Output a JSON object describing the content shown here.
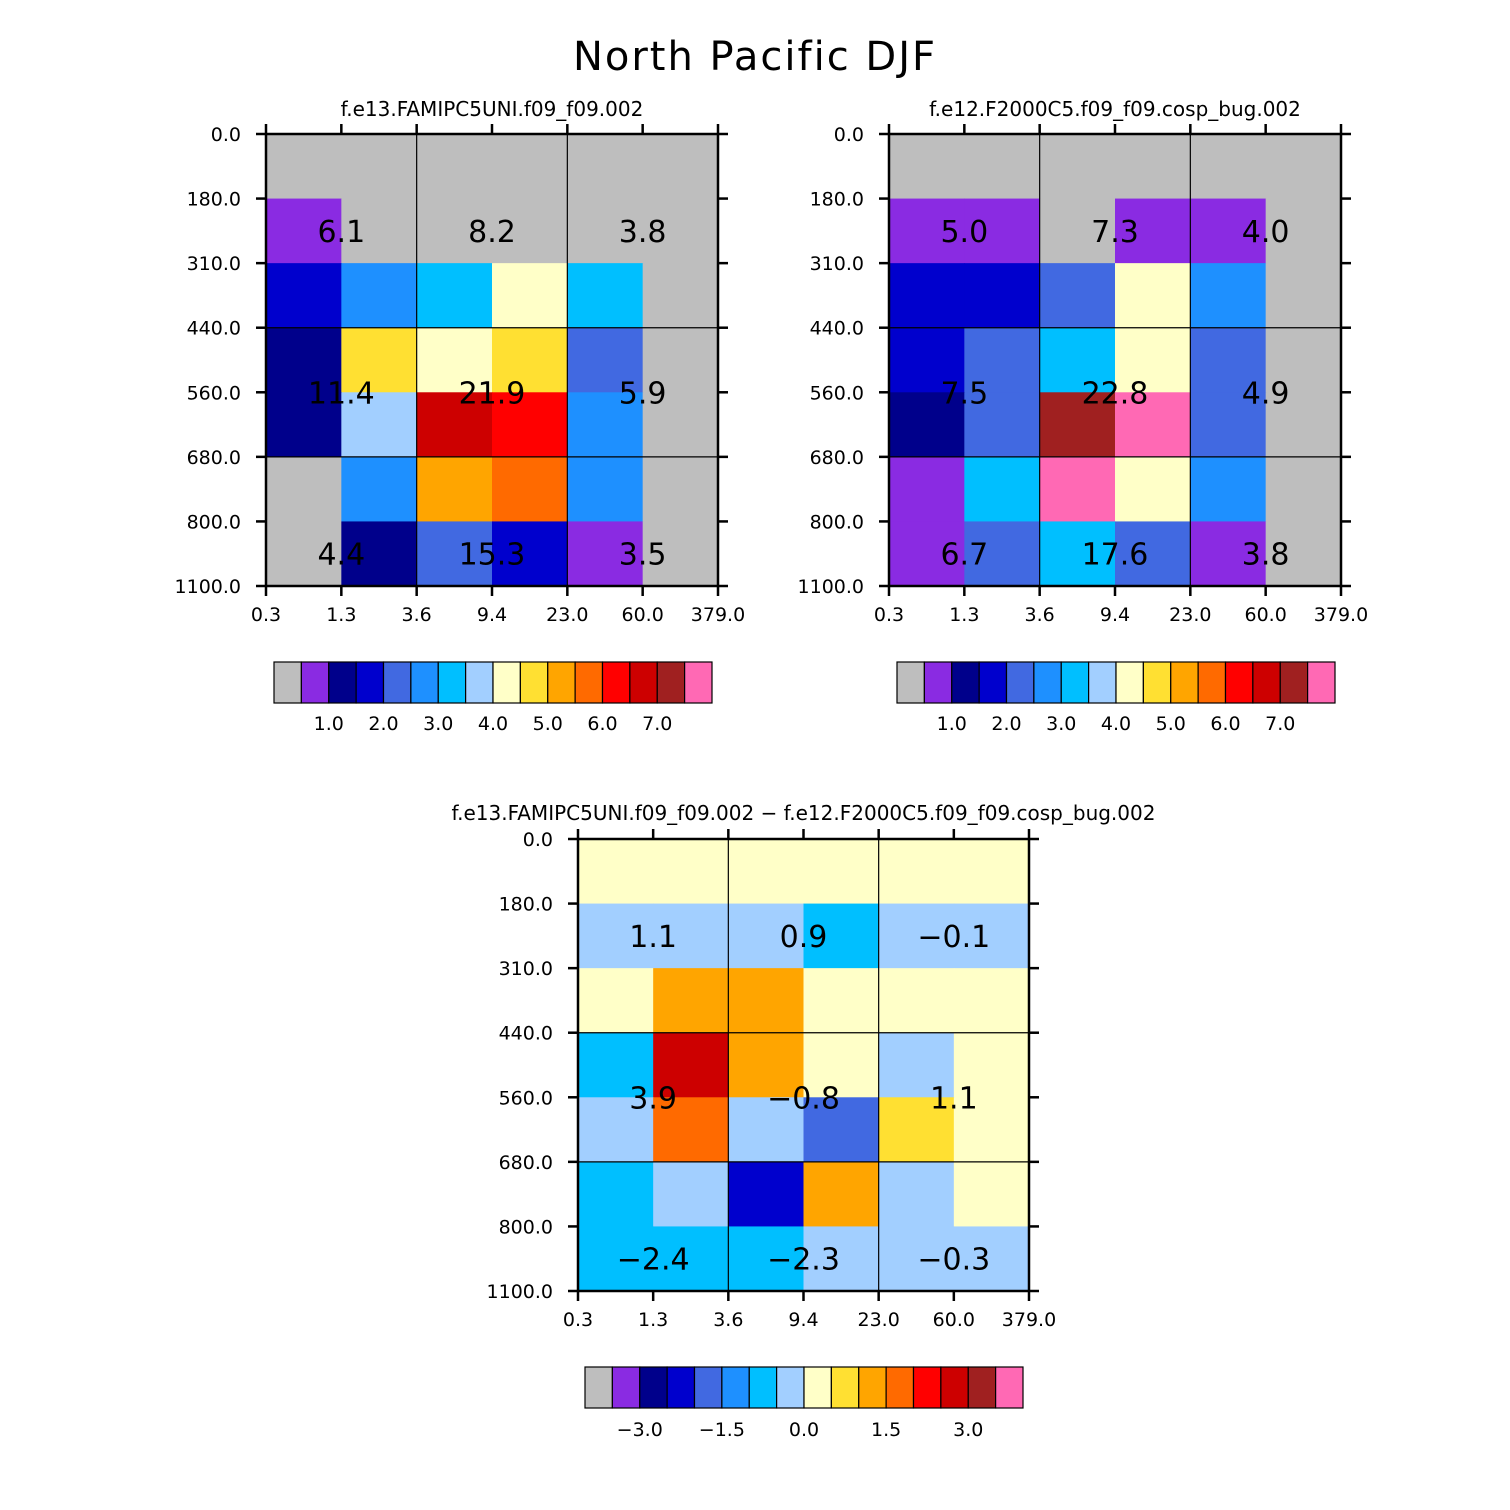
{
  "page": {
    "title": "North Pacific DJF"
  },
  "colors": {
    "palette": [
      "#bebebe",
      "#8a2be2",
      "#00008b",
      "#0000cd",
      "#4169e1",
      "#1e90ff",
      "#00bfff",
      "#a2cfff",
      "#ffffc8",
      "#ffe032",
      "#ffa500",
      "#ff6a00",
      "#ff0000",
      "#cd0000",
      "#a02020",
      "#ff69b4"
    ],
    "background": "#ffffff",
    "axis": "#000000"
  },
  "chart_data": [
    {
      "id": "panel-a",
      "type": "heatmap",
      "title": "f.e13.FAMIPC5UNI.f09_f09.002",
      "x_ticks": [
        "0.3",
        "1.3",
        "3.6",
        "9.4",
        "23.0",
        "60.0",
        "379.0"
      ],
      "y_ticks": [
        "0.0",
        "180.0",
        "310.0",
        "440.0",
        "560.0",
        "680.0",
        "800.0",
        "1100.0"
      ],
      "cells": [
        [
          0,
          0,
          0,
          0,
          0,
          0
        ],
        [
          1,
          0,
          0,
          0,
          0,
          0
        ],
        [
          3,
          5,
          6,
          8,
          6,
          0
        ],
        [
          2,
          9,
          8,
          9,
          4,
          0
        ],
        [
          2,
          7,
          13,
          12,
          5,
          0
        ],
        [
          0,
          5,
          10,
          11,
          5,
          0
        ],
        [
          0,
          2,
          4,
          3,
          1,
          0
        ]
      ],
      "annotations": [
        {
          "col": 1,
          "row": 1,
          "text": "6.1"
        },
        {
          "col": 3,
          "row": 1,
          "text": "8.2"
        },
        {
          "col": 5,
          "row": 1,
          "text": "3.8"
        },
        {
          "col": 1,
          "row": 3.5,
          "text": "11.4"
        },
        {
          "col": 3,
          "row": 3.5,
          "text": "21.9"
        },
        {
          "col": 5,
          "row": 3.5,
          "text": "5.9"
        },
        {
          "col": 1,
          "row": 6,
          "text": "4.4"
        },
        {
          "col": 3,
          "row": 6,
          "text": "15.3"
        },
        {
          "col": 5,
          "row": 6,
          "text": "3.5"
        }
      ],
      "colorbar": {
        "labels": [
          "1.0",
          "2.0",
          "3.0",
          "4.0",
          "5.0",
          "6.0",
          "7.0"
        ]
      }
    },
    {
      "id": "panel-b",
      "type": "heatmap",
      "title": "f.e12.F2000C5.f09_f09.cosp_bug.002",
      "x_ticks": [
        "0.3",
        "1.3",
        "3.6",
        "9.4",
        "23.0",
        "60.0",
        "379.0"
      ],
      "y_ticks": [
        "0.0",
        "180.0",
        "310.0",
        "440.0",
        "560.0",
        "680.0",
        "800.0",
        "1100.0"
      ],
      "cells": [
        [
          0,
          0,
          0,
          0,
          0,
          0
        ],
        [
          1,
          1,
          0,
          1,
          1,
          0
        ],
        [
          3,
          3,
          4,
          8,
          5,
          0
        ],
        [
          3,
          4,
          6,
          8,
          4,
          0
        ],
        [
          2,
          4,
          14,
          15,
          4,
          0
        ],
        [
          1,
          6,
          15,
          8,
          5,
          0
        ],
        [
          1,
          4,
          6,
          4,
          1,
          0
        ]
      ],
      "annotations": [
        {
          "col": 1,
          "row": 1,
          "text": "5.0"
        },
        {
          "col": 3,
          "row": 1,
          "text": "7.3"
        },
        {
          "col": 5,
          "row": 1,
          "text": "4.0"
        },
        {
          "col": 1,
          "row": 3.5,
          "text": "7.5"
        },
        {
          "col": 3,
          "row": 3.5,
          "text": "22.8"
        },
        {
          "col": 5,
          "row": 3.5,
          "text": "4.9"
        },
        {
          "col": 1,
          "row": 6,
          "text": "6.7"
        },
        {
          "col": 3,
          "row": 6,
          "text": "17.6"
        },
        {
          "col": 5,
          "row": 6,
          "text": "3.8"
        }
      ],
      "colorbar": {
        "labels": [
          "1.0",
          "2.0",
          "3.0",
          "4.0",
          "5.0",
          "6.0",
          "7.0"
        ]
      }
    },
    {
      "id": "panel-diff",
      "type": "heatmap",
      "title": "f.e13.FAMIPC5UNI.f09_f09.002 − f.e12.F2000C5.f09_f09.cosp_bug.002",
      "x_ticks": [
        "0.3",
        "1.3",
        "3.6",
        "9.4",
        "23.0",
        "60.0",
        "379.0"
      ],
      "y_ticks": [
        "0.0",
        "180.0",
        "310.0",
        "440.0",
        "560.0",
        "680.0",
        "800.0",
        "1100.0"
      ],
      "cells": [
        [
          8,
          8,
          8,
          8,
          8,
          8
        ],
        [
          7,
          7,
          7,
          6,
          7,
          7
        ],
        [
          8,
          10,
          10,
          8,
          8,
          8
        ],
        [
          6,
          13,
          10,
          8,
          7,
          8
        ],
        [
          7,
          11,
          7,
          4,
          9,
          8
        ],
        [
          6,
          7,
          3,
          10,
          7,
          8
        ],
        [
          6,
          6,
          6,
          7,
          7,
          7
        ]
      ],
      "annotations": [
        {
          "col": 1,
          "row": 1,
          "text": "1.1"
        },
        {
          "col": 3,
          "row": 1,
          "text": "0.9"
        },
        {
          "col": 5,
          "row": 1,
          "text": "−0.1"
        },
        {
          "col": 1,
          "row": 3.5,
          "text": "3.9"
        },
        {
          "col": 3,
          "row": 3.5,
          "text": "−0.8"
        },
        {
          "col": 5,
          "row": 3.5,
          "text": "1.1"
        },
        {
          "col": 1,
          "row": 6,
          "text": "−2.4"
        },
        {
          "col": 3,
          "row": 6,
          "text": "−2.3"
        },
        {
          "col": 5,
          "row": 6,
          "text": "−0.3"
        }
      ],
      "colorbar": {
        "labels": [
          "−3.0",
          "−1.5",
          "0.0",
          "1.5",
          "3.0"
        ]
      }
    }
  ]
}
